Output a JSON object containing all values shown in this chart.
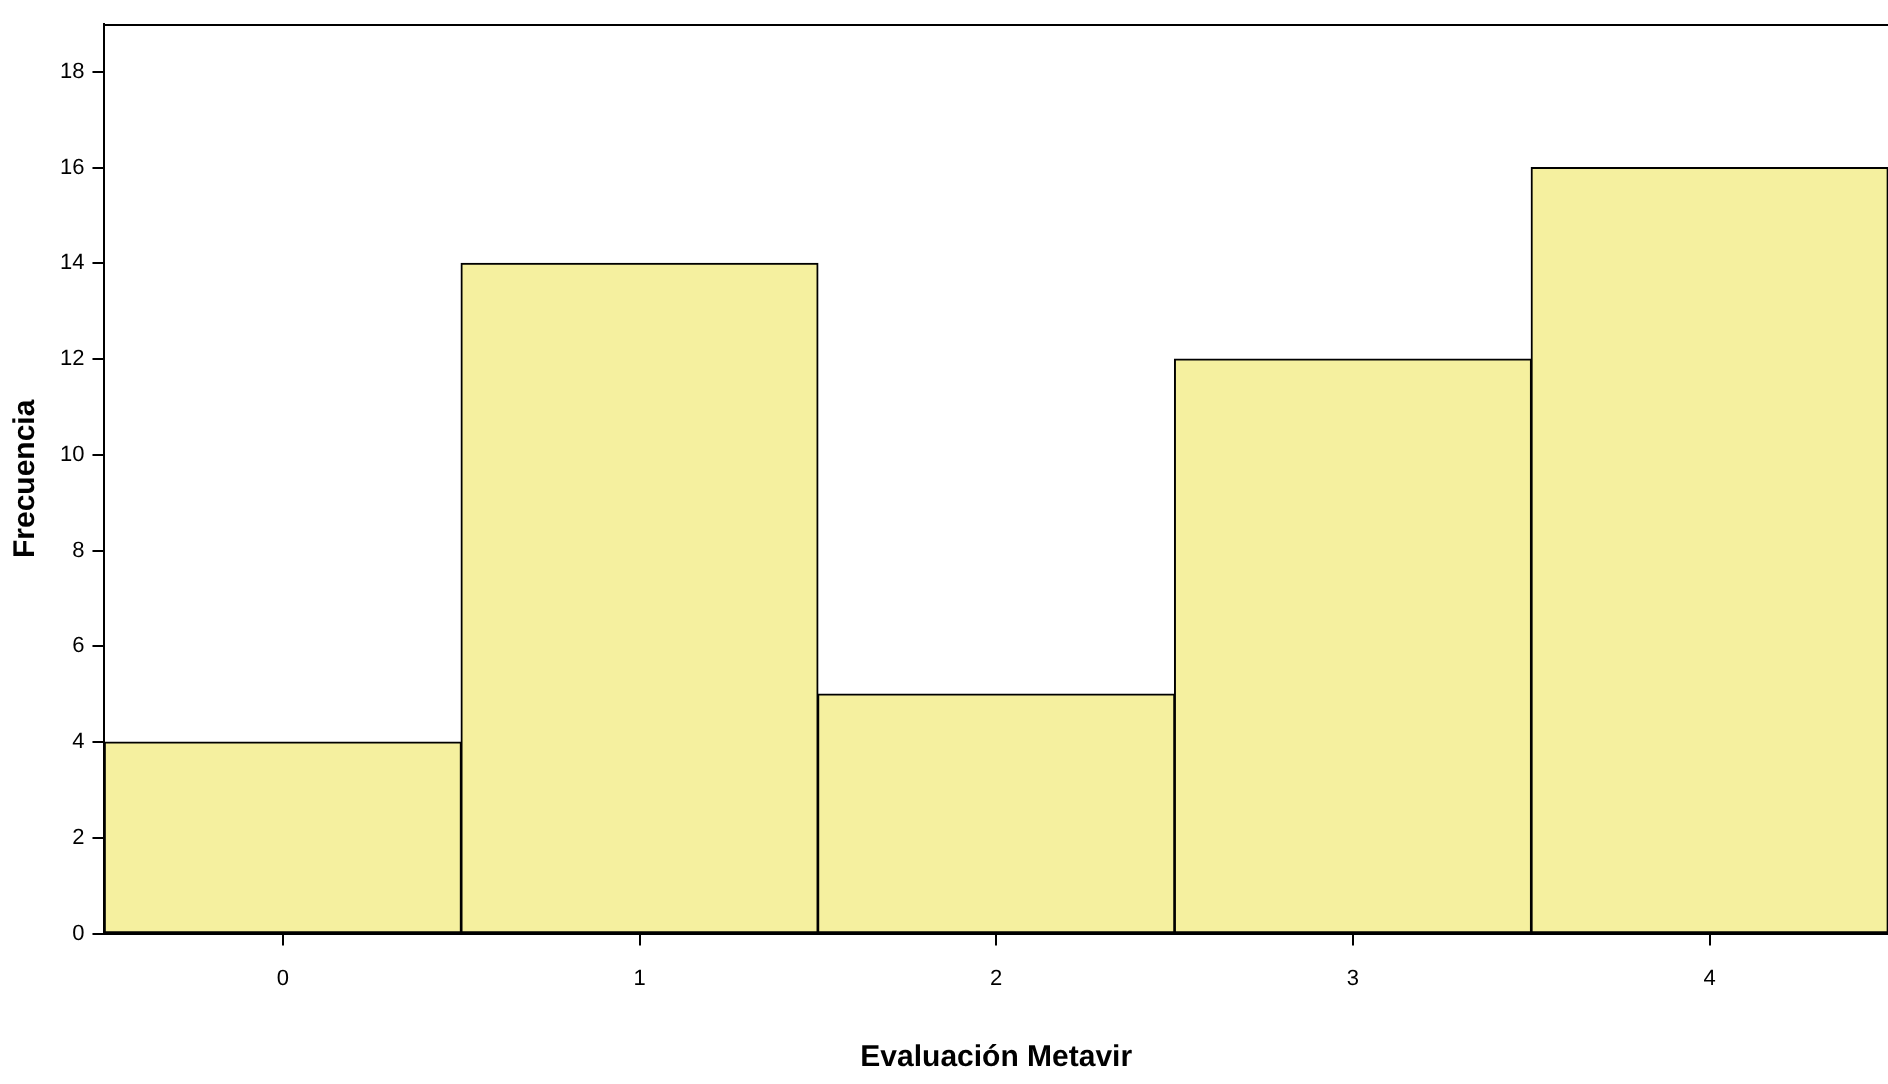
{
  "chart_data": {
    "type": "bar",
    "xlabel": "Evaluación Metavir",
    "ylabel": "Frecuencia",
    "categories": [
      "0",
      "1",
      "2",
      "3",
      "4"
    ],
    "values": [
      4,
      14,
      5,
      12,
      16
    ],
    "color": "#f5f09f",
    "ylim": [
      0,
      19
    ],
    "yticks": [
      0,
      2,
      4,
      6,
      8,
      10,
      12,
      14,
      16,
      18
    ],
    "grid": false,
    "legend": false
  }
}
